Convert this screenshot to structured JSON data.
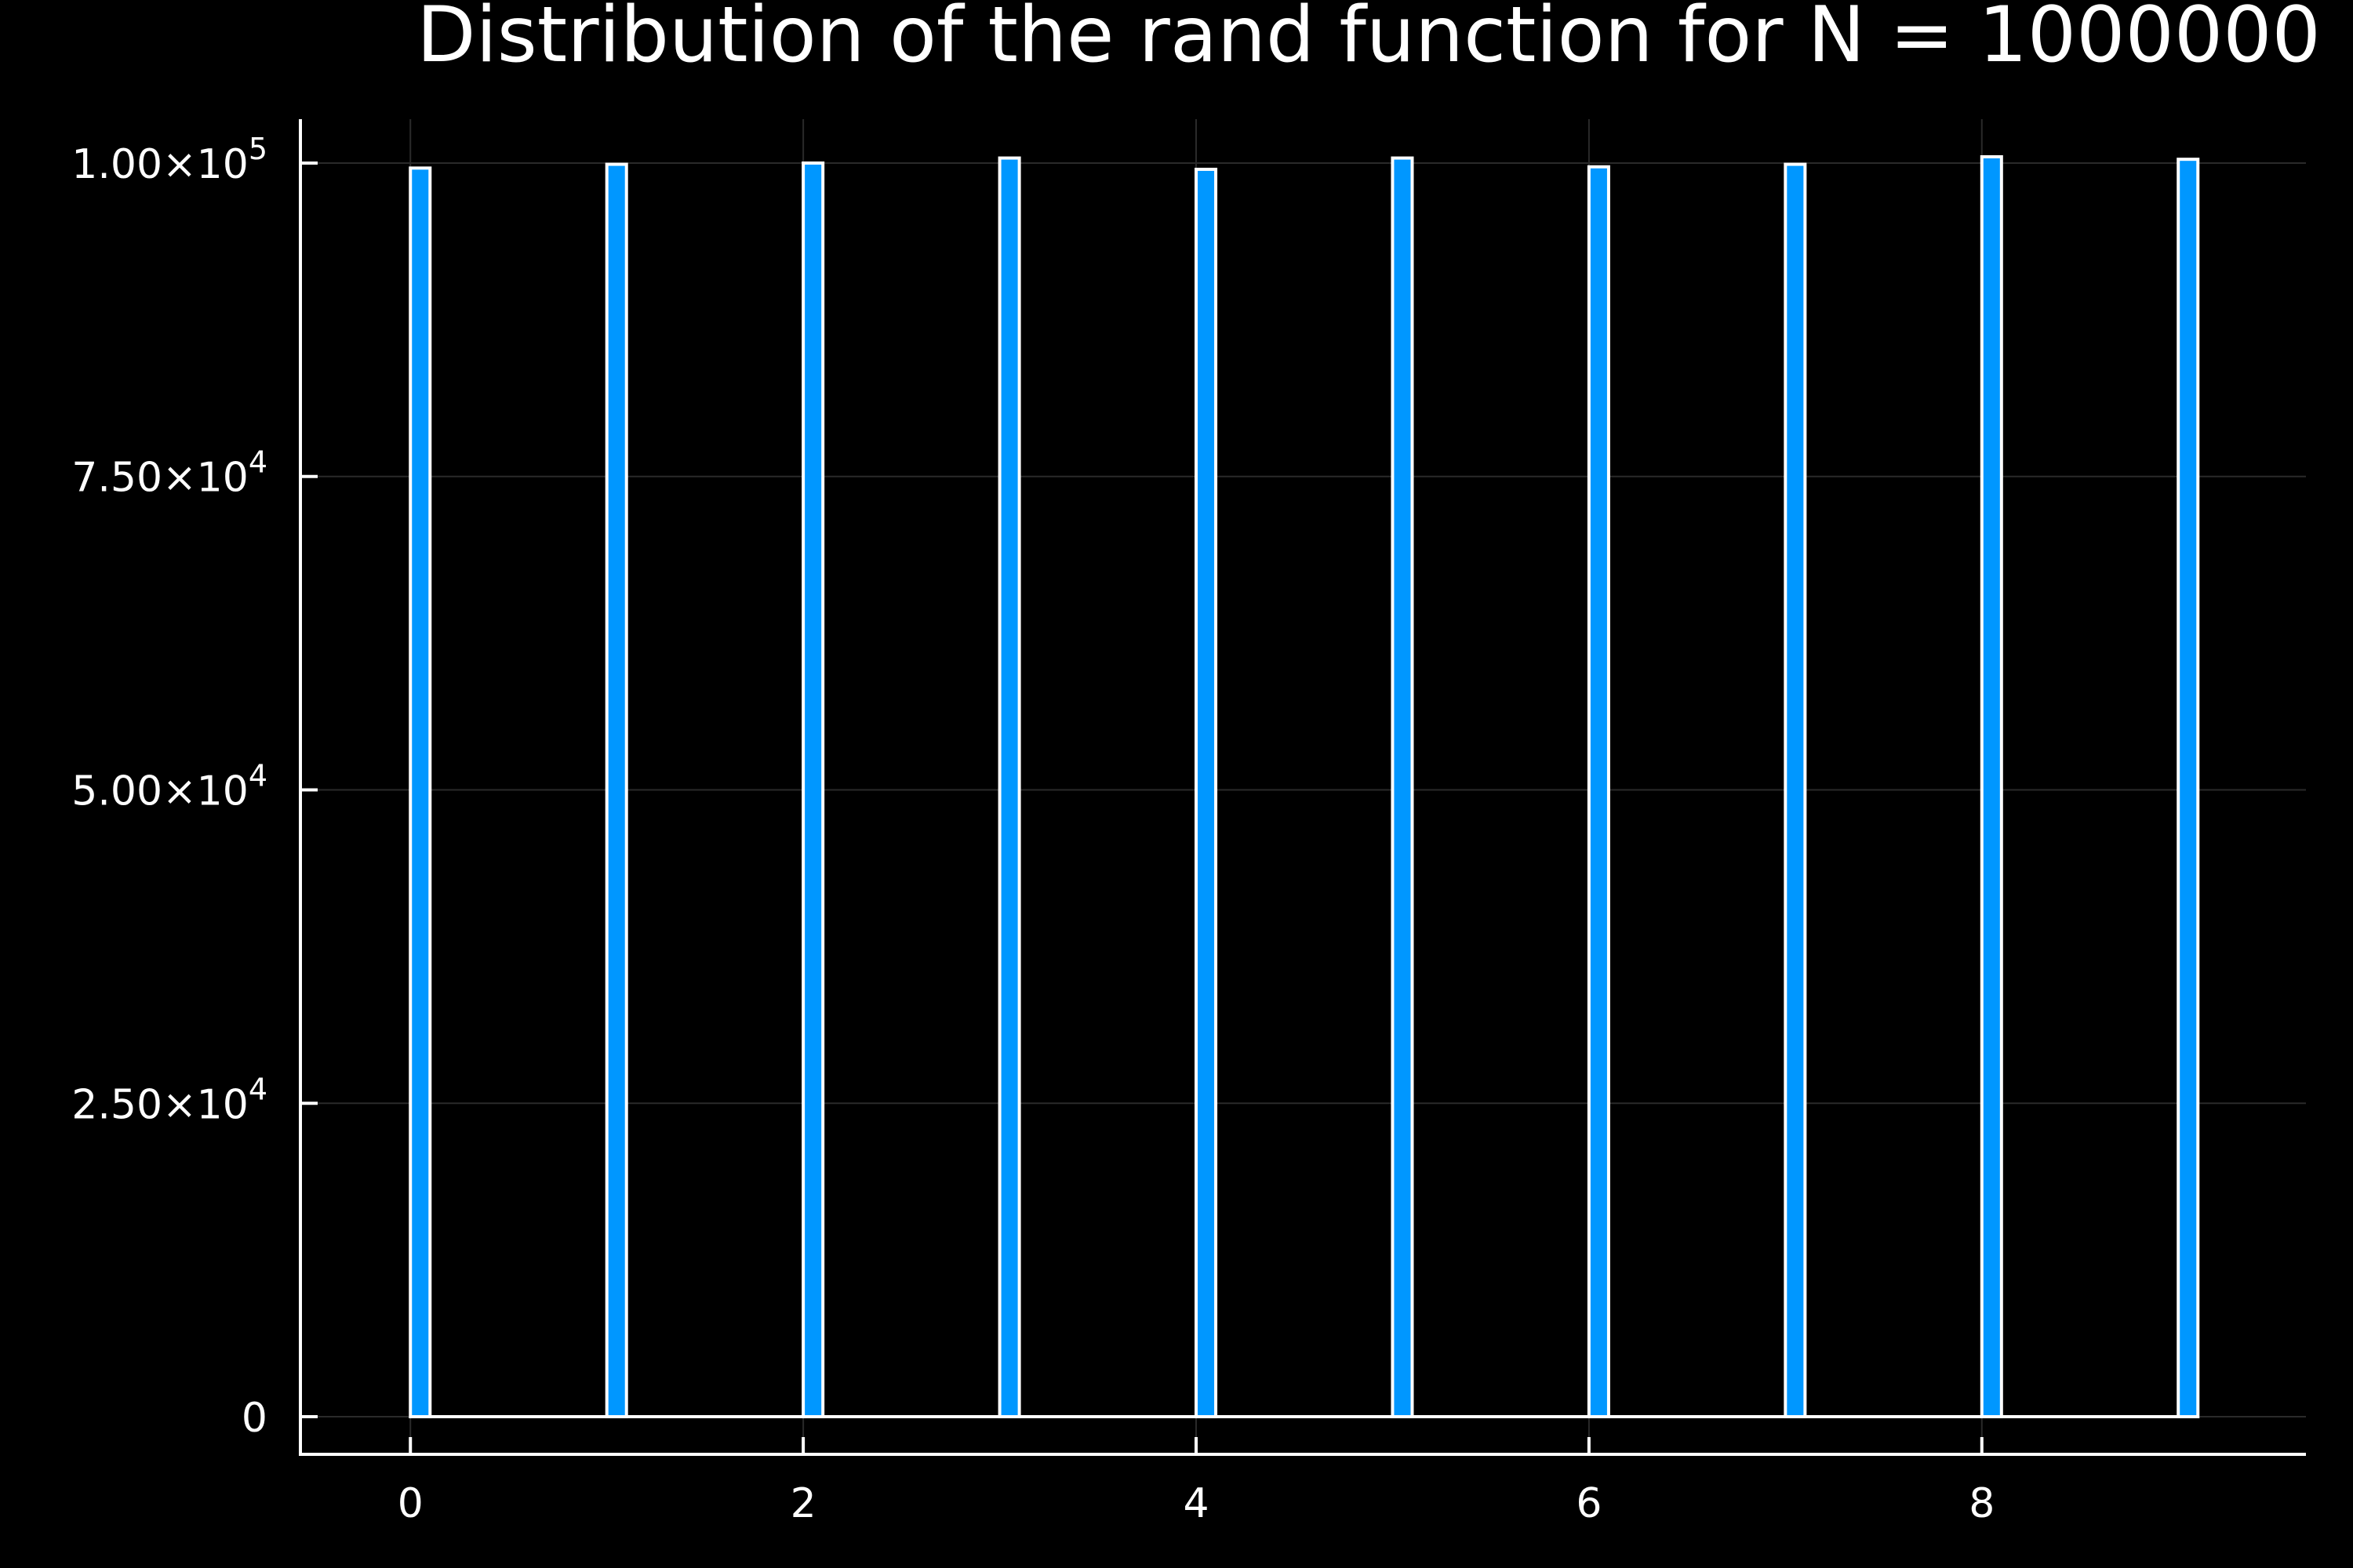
{
  "chart_data": {
    "type": "bar",
    "title": "Distribution of the rand function for N = 1000000",
    "xlabel": "",
    "ylabel": "",
    "x": [
      0,
      1,
      2,
      3,
      4,
      5,
      6,
      7,
      8,
      9
    ],
    "values": [
      99600,
      99900,
      100000,
      100400,
      99500,
      100400,
      99700,
      99900,
      100500,
      100300
    ],
    "bar_width": 0.1,
    "xlim": [
      -0.56,
      9.65
    ],
    "ylim": [
      -3000,
      103500
    ],
    "xticks": [
      0,
      2,
      4,
      6,
      8
    ],
    "xtick_labels": [
      "0",
      "2",
      "4",
      "6",
      "8"
    ],
    "yticks": [
      {
        "value": 0,
        "mantissa": "0",
        "exponent": ""
      },
      {
        "value": 25000,
        "mantissa": "2.50×10",
        "exponent": "4"
      },
      {
        "value": 50000,
        "mantissa": "5.00×10",
        "exponent": "4"
      },
      {
        "value": 75000,
        "mantissa": "7.50×10",
        "exponent": "4"
      },
      {
        "value": 100000,
        "mantissa": "1.00×10",
        "exponent": "5"
      }
    ],
    "grid": true,
    "legend": "none",
    "colors": {
      "background": "#000000",
      "bar_fill": "#0097ff",
      "bar_edge": "#ffffff",
      "text": "#ffffff",
      "grid": "#2a2a2a"
    }
  }
}
